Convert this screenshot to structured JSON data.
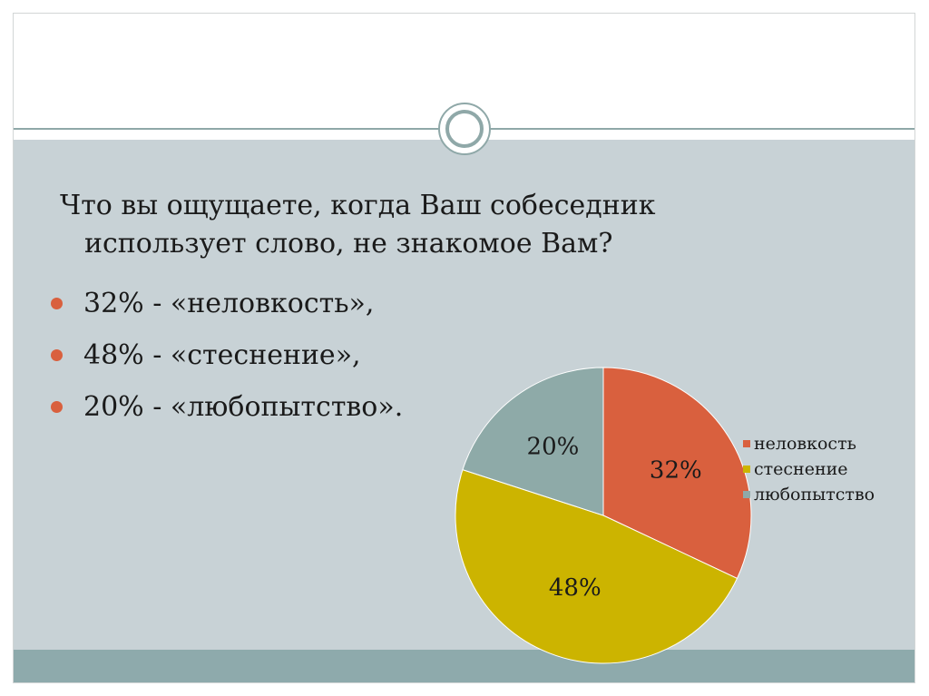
{
  "question": {
    "line1": "Что вы ощущаете, когда Ваш собеседник",
    "line2": "использует слово, не знакомое Вам?"
  },
  "bullets": [
    {
      "text": "32% - «неловкость»,"
    },
    {
      "text": "48% - «стеснение»,"
    },
    {
      "text": "20% - «любопытство»."
    }
  ],
  "colors": {
    "band": "#c8d2d6",
    "accent_rule": "#8fa8a8",
    "bullet": "#d9603e"
  },
  "chart_data": {
    "type": "pie",
    "title": "",
    "categories": [
      "неловкость",
      "стеснение",
      "любопытство"
    ],
    "values": [
      32,
      48,
      20
    ],
    "data_labels": [
      "32%",
      "48%",
      "20%"
    ],
    "colors": [
      "#d9603e",
      "#ccb400",
      "#8eaaa8"
    ],
    "legend_position": "right",
    "start_angle": "top, clockwise"
  }
}
